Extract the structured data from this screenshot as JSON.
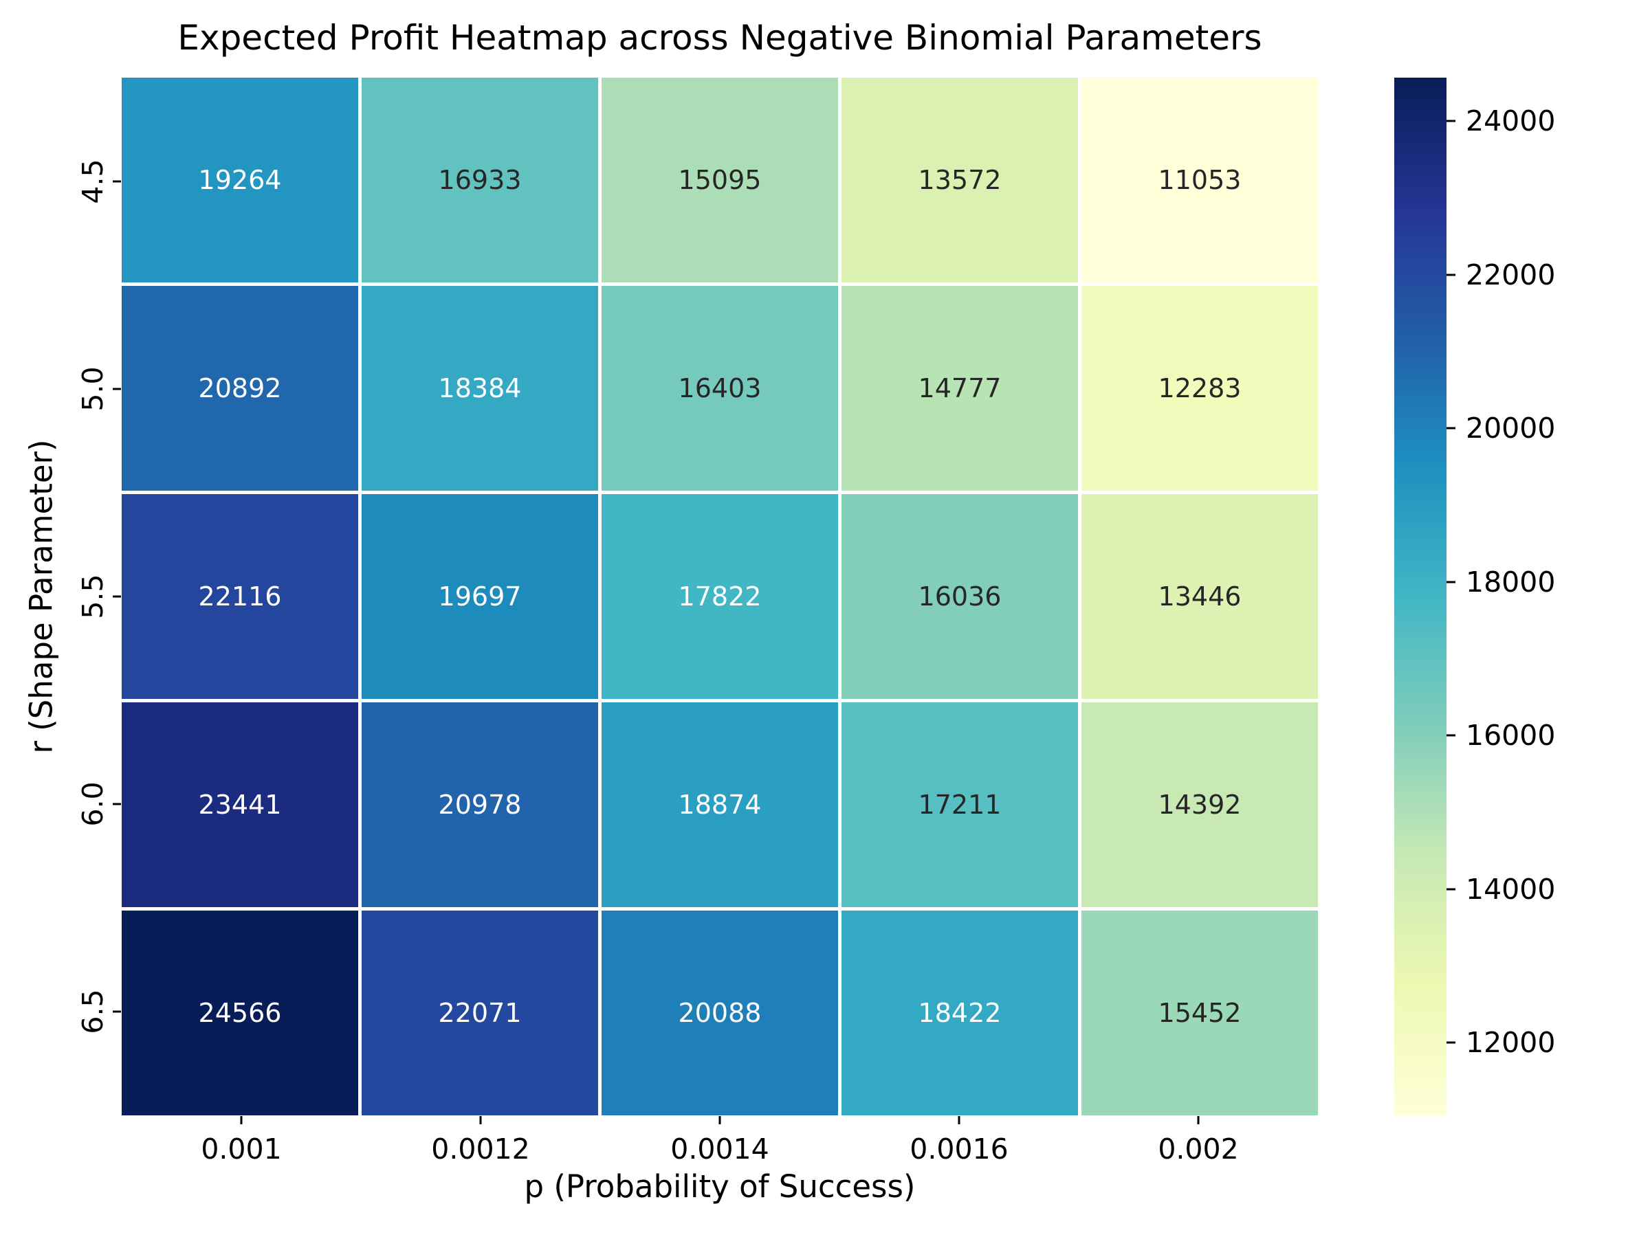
{
  "title": "Expected Profit Heatmap across Negative Binomial Parameters",
  "chart_data": {
    "type": "heatmap",
    "x_categories": [
      "0.001",
      "0.0012",
      "0.0014",
      "0.0016",
      "0.002"
    ],
    "y_categories": [
      "4.5",
      "5.0",
      "5.5",
      "6.0",
      "6.5"
    ],
    "xlabel": "p (Probability of Success)",
    "ylabel": "r (Shape Parameter)",
    "values": [
      [
        19264,
        16933,
        15095,
        13572,
        11053
      ],
      [
        20892,
        18384,
        16403,
        14777,
        12283
      ],
      [
        22116,
        19697,
        17822,
        16036,
        13446
      ],
      [
        23441,
        20978,
        18874,
        17211,
        14392
      ],
      [
        24566,
        22071,
        20088,
        18422,
        15452
      ]
    ],
    "vmin": 11053,
    "vmax": 24566,
    "colorbar_ticks": [
      24000,
      22000,
      20000,
      18000,
      16000,
      14000,
      12000
    ],
    "colormap": {
      "name": "YlGnBu",
      "stops": [
        "#ffffd9",
        "#edf8b1",
        "#c7e9b4",
        "#7fcdbb",
        "#41b6c4",
        "#1d91c0",
        "#225ea8",
        "#253494",
        "#081d58"
      ]
    },
    "annotation_colors": {
      "on_dark": "#ffffff",
      "on_light": "#262626"
    },
    "grid_line_color": "#ffffff",
    "legend_position": "right"
  }
}
